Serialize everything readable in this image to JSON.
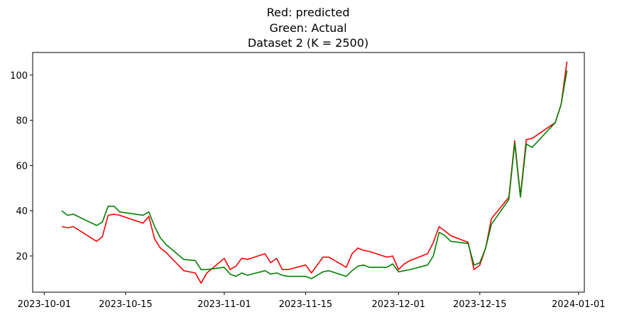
{
  "chart_data": {
    "type": "line",
    "title_lines": [
      "Red: predicted",
      "Green: Actual",
      "Dataset 2 (K = 2500)"
    ],
    "xlabel": "",
    "ylabel": "",
    "x_ticks": [
      "2023-10-01",
      "2023-10-15",
      "2023-11-01",
      "2023-11-15",
      "2023-12-01",
      "2023-12-15",
      "2024-01-01"
    ],
    "y_ticks": [
      20,
      40,
      60,
      80,
      100
    ],
    "xlim": [
      "2023-10-01",
      "2024-01-01"
    ],
    "ylim": [
      4,
      110
    ],
    "grid": false,
    "x": [
      "2023-10-04",
      "2023-10-05",
      "2023-10-06",
      "2023-10-10",
      "2023-10-11",
      "2023-10-12",
      "2023-10-13",
      "2023-10-14",
      "2023-10-18",
      "2023-10-19",
      "2023-10-20",
      "2023-10-21",
      "2023-10-22",
      "2023-10-25",
      "2023-10-27",
      "2023-10-28",
      "2023-10-29",
      "2023-11-01",
      "2023-11-02",
      "2023-11-03",
      "2023-11-04",
      "2023-11-05",
      "2023-11-08",
      "2023-11-09",
      "2023-11-10",
      "2023-11-11",
      "2023-11-12",
      "2023-11-15",
      "2023-11-16",
      "2023-11-17",
      "2023-11-18",
      "2023-11-19",
      "2023-11-22",
      "2023-11-23",
      "2023-11-24",
      "2023-11-25",
      "2023-11-26",
      "2023-11-29",
      "2023-11-30",
      "2023-12-01",
      "2023-12-02",
      "2023-12-03",
      "2023-12-06",
      "2023-12-07",
      "2023-12-08",
      "2023-12-09",
      "2023-12-10",
      "2023-12-13",
      "2023-12-14",
      "2023-12-15",
      "2023-12-16",
      "2023-12-17",
      "2023-12-20",
      "2023-12-21",
      "2023-12-22",
      "2023-12-23",
      "2023-12-24",
      "2023-12-28",
      "2023-12-29",
      "2023-12-30"
    ],
    "series": [
      {
        "color": "#ff0000",
        "values": [
          33,
          32.5,
          33,
          26.5,
          28.5,
          38,
          38.5,
          38,
          34.5,
          37.5,
          27.5,
          23.5,
          21.5,
          13.5,
          12.5,
          8,
          12.5,
          19,
          14,
          15.5,
          19,
          18.5,
          21,
          17,
          19,
          14,
          14,
          16,
          12.5,
          16,
          19.5,
          19.5,
          15,
          21,
          23.5,
          22.5,
          22,
          19.5,
          20,
          14,
          16.5,
          18,
          21,
          26,
          33,
          31,
          29,
          26,
          14,
          16,
          23.5,
          36.5,
          46,
          71,
          46.5,
          71.5,
          72,
          79,
          87,
          106
        ]
      },
      {
        "color": "#008000",
        "values": [
          40,
          38,
          38.5,
          33.5,
          35,
          42,
          42,
          39.5,
          38,
          39.5,
          33,
          28,
          25,
          18.5,
          18,
          14,
          14,
          15,
          12,
          11,
          12.5,
          11.5,
          13.5,
          12,
          12.5,
          11.5,
          11,
          11,
          10,
          11.5,
          13,
          13.5,
          11,
          13.5,
          15.5,
          16,
          15,
          15,
          16.5,
          13,
          13.5,
          14,
          16,
          20,
          30.5,
          29,
          26.5,
          25.5,
          16,
          17,
          23.5,
          34,
          45,
          70,
          46,
          69.5,
          68,
          79,
          87,
          102
        ]
      }
    ]
  }
}
